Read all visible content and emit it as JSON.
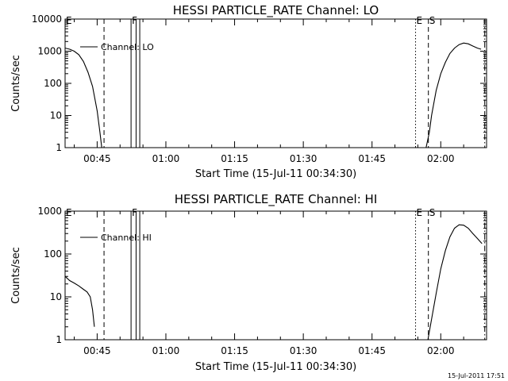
{
  "chart_data": [
    {
      "type": "line",
      "title": "HESSI PARTICLE_RATE Channel: LO",
      "ylabel": "Counts/sec",
      "xlabel": "Start Time (15-Jul-11 00:34:30)",
      "yscale": "log",
      "ylim": [
        1,
        10000
      ],
      "xlim_minutes": [
        38,
        130
      ],
      "yticks": [
        {
          "value": 1,
          "label": "1"
        },
        {
          "value": 10,
          "label": "10"
        },
        {
          "value": 100,
          "label": "100"
        },
        {
          "value": 1000,
          "label": "1000"
        },
        {
          "value": 10000,
          "label": "10000"
        }
      ],
      "xticks": [
        {
          "value": 45,
          "label": "00:45"
        },
        {
          "value": 60,
          "label": "01:00"
        },
        {
          "value": 75,
          "label": "01:15"
        },
        {
          "value": 90,
          "label": "01:30"
        },
        {
          "value": 105,
          "label": "01:45"
        },
        {
          "value": 120,
          "label": "02:00"
        }
      ],
      "legend": {
        "entry": "Channel: LO",
        "placement": "upper-left"
      },
      "series": [
        {
          "name": "Channel: LO",
          "segments": [
            [
              [
                38,
                1250
              ],
              [
                39,
                1150
              ],
              [
                40,
                1000
              ],
              [
                41,
                780
              ],
              [
                42,
                480
              ],
              [
                43,
                220
              ],
              [
                44,
                80
              ],
              [
                45,
                14
              ],
              [
                45.6,
                3
              ],
              [
                46,
                1
              ]
            ],
            [
              [
                116.8,
                1
              ],
              [
                117.5,
                3
              ],
              [
                118,
                10
              ],
              [
                119,
                60
              ],
              [
                120,
                200
              ],
              [
                121,
                450
              ],
              [
                122,
                850
              ],
              [
                123,
                1250
              ],
              [
                124,
                1600
              ],
              [
                125,
                1800
              ],
              [
                126,
                1700
              ],
              [
                127,
                1450
              ],
              [
                128,
                1250
              ],
              [
                128.8,
                1150
              ]
            ]
          ]
        }
      ],
      "markers": [
        {
          "label": "E",
          "x": 38,
          "style": "solid"
        },
        {
          "label": "",
          "x": 46.5,
          "style": "dashed"
        },
        {
          "label": "F",
          "x": 52.4,
          "style": "solid"
        },
        {
          "label": "",
          "x": 53.5,
          "style": "solid"
        },
        {
          "label": "",
          "x": 54.3,
          "style": "solid"
        },
        {
          "label": "E",
          "x": 114.5,
          "style": "dotted"
        },
        {
          "label": "S",
          "x": 117.3,
          "style": "dashed"
        },
        {
          "label": "",
          "x": 129.6,
          "style": "dashdot"
        }
      ]
    },
    {
      "type": "line",
      "title": "HESSI PARTICLE_RATE Channel: HI",
      "ylabel": "Counts/sec",
      "xlabel": "Start Time (15-Jul-11 00:34:30)",
      "yscale": "log",
      "ylim": [
        1,
        1000
      ],
      "xlim_minutes": [
        38,
        130
      ],
      "yticks": [
        {
          "value": 1,
          "label": "1"
        },
        {
          "value": 10,
          "label": "10"
        },
        {
          "value": 100,
          "label": "100"
        },
        {
          "value": 1000,
          "label": "1000"
        }
      ],
      "xticks": [
        {
          "value": 45,
          "label": "00:45"
        },
        {
          "value": 60,
          "label": "01:00"
        },
        {
          "value": 75,
          "label": "01:15"
        },
        {
          "value": 90,
          "label": "01:30"
        },
        {
          "value": 105,
          "label": "01:45"
        },
        {
          "value": 120,
          "label": "02:00"
        }
      ],
      "legend": {
        "entry": "Channel: HI",
        "placement": "upper-left"
      },
      "series": [
        {
          "name": "Channel: HI",
          "segments": [
            [
              [
                38,
                30
              ],
              [
                39,
                24
              ],
              [
                40,
                21
              ],
              [
                41,
                18
              ],
              [
                42,
                15
              ],
              [
                42.8,
                13
              ],
              [
                43.5,
                10
              ],
              [
                44,
                5
              ],
              [
                44.4,
                2
              ]
            ],
            [
              [
                117.2,
                1
              ],
              [
                118,
                3
              ],
              [
                119,
                12
              ],
              [
                120,
                45
              ],
              [
                121,
                120
              ],
              [
                122,
                250
              ],
              [
                123,
                400
              ],
              [
                124,
                480
              ],
              [
                125,
                470
              ],
              [
                126,
                400
              ],
              [
                127,
                300
              ],
              [
                128,
                230
              ],
              [
                129,
                175
              ]
            ]
          ]
        }
      ],
      "markers": [
        {
          "label": "E",
          "x": 38,
          "style": "solid"
        },
        {
          "label": "",
          "x": 46.5,
          "style": "dashed"
        },
        {
          "label": "F",
          "x": 52.4,
          "style": "solid"
        },
        {
          "label": "",
          "x": 53.5,
          "style": "solid"
        },
        {
          "label": "",
          "x": 54.3,
          "style": "solid"
        },
        {
          "label": "E",
          "x": 114.5,
          "style": "dotted"
        },
        {
          "label": "S",
          "x": 117.3,
          "style": "dashed"
        },
        {
          "label": "",
          "x": 129.6,
          "style": "dashdot"
        }
      ]
    }
  ],
  "footer": {
    "timestamp": "15-Jul-2011 17:51"
  }
}
